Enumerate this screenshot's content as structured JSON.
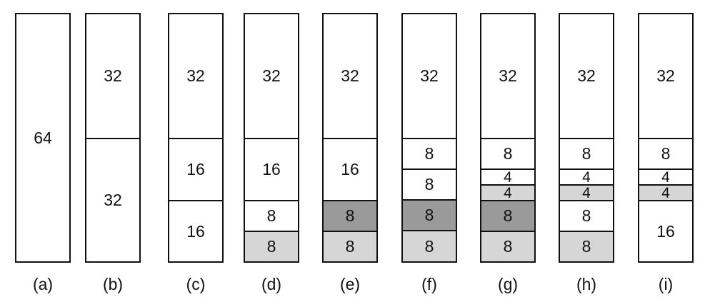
{
  "columns": [
    {
      "label": "(a)",
      "blocks": [
        {
          "text": "64",
          "size": 64,
          "fill": "free"
        }
      ]
    },
    {
      "label": "(b)",
      "blocks": [
        {
          "text": "32",
          "size": 32,
          "fill": "free"
        },
        {
          "text": "32",
          "size": 32,
          "fill": "free"
        }
      ]
    },
    {
      "label": "(c)",
      "blocks": [
        {
          "text": "32",
          "size": 32,
          "fill": "free"
        },
        {
          "text": "16",
          "size": 16,
          "fill": "free"
        },
        {
          "text": "16",
          "size": 16,
          "fill": "free"
        }
      ]
    },
    {
      "label": "(d)",
      "blocks": [
        {
          "text": "32",
          "size": 32,
          "fill": "free"
        },
        {
          "text": "16",
          "size": 16,
          "fill": "free"
        },
        {
          "text": "8",
          "size": 8,
          "fill": "free"
        },
        {
          "text": "8",
          "size": 8,
          "fill": "light"
        }
      ]
    },
    {
      "label": "(e)",
      "blocks": [
        {
          "text": "32",
          "size": 32,
          "fill": "free"
        },
        {
          "text": "16",
          "size": 16,
          "fill": "free"
        },
        {
          "text": "8",
          "size": 8,
          "fill": "dark"
        },
        {
          "text": "8",
          "size": 8,
          "fill": "light"
        }
      ]
    },
    {
      "label": "(f)",
      "blocks": [
        {
          "text": "32",
          "size": 32,
          "fill": "free"
        },
        {
          "text": "8",
          "size": 8,
          "fill": "free"
        },
        {
          "text": "8",
          "size": 8,
          "fill": "free"
        },
        {
          "text": "8",
          "size": 8,
          "fill": "dark"
        },
        {
          "text": "8",
          "size": 8,
          "fill": "light"
        }
      ]
    },
    {
      "label": "(g)",
      "blocks": [
        {
          "text": "32",
          "size": 32,
          "fill": "free"
        },
        {
          "text": "8",
          "size": 8,
          "fill": "free"
        },
        {
          "text": "4",
          "size": 4,
          "fill": "free"
        },
        {
          "text": "4",
          "size": 4,
          "fill": "light"
        },
        {
          "text": "8",
          "size": 8,
          "fill": "dark"
        },
        {
          "text": "8",
          "size": 8,
          "fill": "light"
        }
      ]
    },
    {
      "label": "(h)",
      "blocks": [
        {
          "text": "32",
          "size": 32,
          "fill": "free"
        },
        {
          "text": "8",
          "size": 8,
          "fill": "free"
        },
        {
          "text": "4",
          "size": 4,
          "fill": "free"
        },
        {
          "text": "4",
          "size": 4,
          "fill": "light"
        },
        {
          "text": "8",
          "size": 8,
          "fill": "free"
        },
        {
          "text": "8",
          "size": 8,
          "fill": "light"
        }
      ]
    },
    {
      "label": "(i)",
      "blocks": [
        {
          "text": "32",
          "size": 32,
          "fill": "free"
        },
        {
          "text": "8",
          "size": 8,
          "fill": "free"
        },
        {
          "text": "4",
          "size": 4,
          "fill": "free"
        },
        {
          "text": "4",
          "size": 4,
          "fill": "light"
        },
        {
          "text": "16",
          "size": 16,
          "fill": "free"
        }
      ]
    }
  ]
}
